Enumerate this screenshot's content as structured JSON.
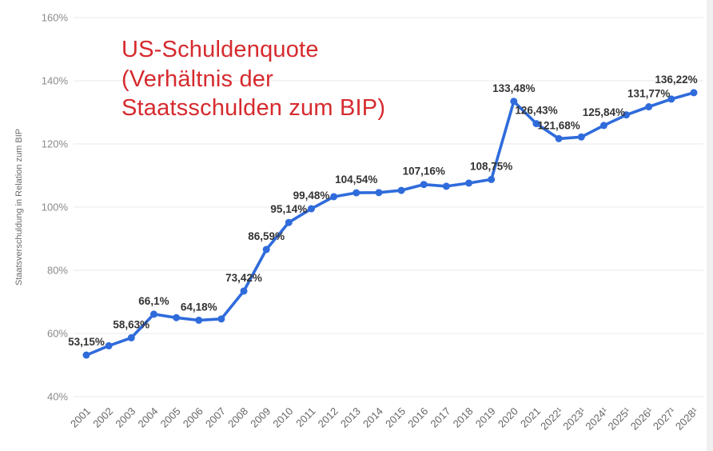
{
  "page": {
    "background": "#ffffff"
  },
  "chart_data": {
    "type": "line",
    "title": "US-Schuldenquote (Verhältnis der Staatsschulden zum BIP)",
    "title_lines": [
      "US-Schuldenquote",
      "(Verhältnis der",
      "Staatsschulden zum BIP)"
    ],
    "title_color": "#d62a2e",
    "ylabel": "Staatsverschuldung in Relation zum BIP",
    "xlabel": "",
    "ylim": [
      40,
      160
    ],
    "ytick_step": 20,
    "tick_suffix": "%",
    "grid": true,
    "legend_position": "none",
    "line_color": "#2f6bdb",
    "grid_color": "#e9e9e9",
    "tick_color": "#8a8a8a",
    "xtick_color": "#666666",
    "label_color": "#333333",
    "categories": [
      "2001",
      "2002",
      "2003",
      "2004",
      "2005",
      "2006",
      "2007",
      "2008",
      "2009",
      "2010",
      "2011",
      "2012",
      "2013",
      "2014",
      "2015",
      "2016",
      "2017",
      "2018",
      "2019",
      "2020",
      "2021",
      "2022¹",
      "2023¹",
      "2024¹",
      "2025¹",
      "2026¹",
      "2027¹",
      "2028¹"
    ],
    "values": [
      53.15,
      56.1,
      58.63,
      66.1,
      65.0,
      64.18,
      64.6,
      73.42,
      86.59,
      95.14,
      99.48,
      103.3,
      104.54,
      104.6,
      105.3,
      107.16,
      106.6,
      107.6,
      108.75,
      133.48,
      126.43,
      121.68,
      122.2,
      125.84,
      129.2,
      131.77,
      134.2,
      136.22
    ],
    "point_labels": [
      "53,15%",
      null,
      "58,63%",
      "66,1%",
      null,
      "64,18%",
      null,
      "73,42%",
      "86,59%",
      "95,14%",
      "99,48%",
      null,
      "104,54%",
      null,
      null,
      "107,16%",
      null,
      null,
      "108,75%",
      "133,48%",
      "126,43%",
      "121,68%",
      null,
      "125,84%",
      null,
      "131,77%",
      null,
      "136,22%"
    ]
  }
}
